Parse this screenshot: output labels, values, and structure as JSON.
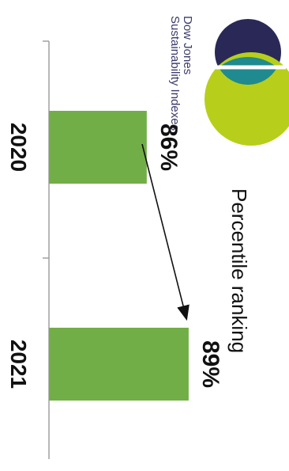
{
  "chart_data": {
    "type": "bar",
    "title": "Percentile ranking",
    "categories": [
      "2020",
      "2021"
    ],
    "values": [
      86,
      89
    ],
    "value_labels": [
      "86%",
      "89%"
    ],
    "ylim": [
      79,
      92
    ],
    "grid": false,
    "annotation": "arrow from 86% to 89%"
  },
  "logo": {
    "line1": "Dow Jones",
    "line2": "Sustainability Indexes",
    "colors": {
      "top_circle": "#2a2856",
      "overlap": "#1f8a8f",
      "bottom_circle": "#b7cf1a"
    }
  },
  "colors": {
    "bar": "#72ae47",
    "axis": "#a0a0a0",
    "text": "#111111",
    "logo_text": "#3a3a6a"
  }
}
